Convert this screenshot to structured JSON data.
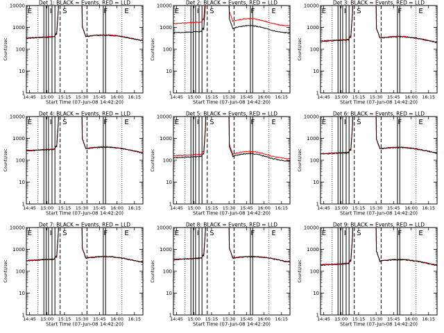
{
  "chart_data": {
    "type": "line",
    "ylabel": "Counts/sec",
    "xlabel": "Start Time (07-Jun-08 14:42:20)",
    "x_range_minutes": [
      0,
      100
    ],
    "yscale": "log",
    "ylim": [
      1,
      10000
    ],
    "y_ticks": [
      {
        "value": 1,
        "label": "1"
      },
      {
        "value": 10,
        "label": "10"
      },
      {
        "value": 100,
        "label": "100"
      },
      {
        "value": 1000,
        "label": "1000"
      },
      {
        "value": 10000,
        "label": "10000"
      }
    ],
    "x_ticks": [
      {
        "t": 2.7,
        "label": "14:45"
      },
      {
        "t": 17.7,
        "label": "15:00"
      },
      {
        "t": 32.7,
        "label": "15:15"
      },
      {
        "t": 47.7,
        "label": "15:30"
      },
      {
        "t": 62.7,
        "label": "15:45"
      },
      {
        "t": 77.7,
        "label": "16:00"
      },
      {
        "t": 92.7,
        "label": "16:15"
      }
    ],
    "series_legend": {
      "black": "Events",
      "red": "LLD"
    },
    "marker_letters": [
      "E",
      "I",
      "S",
      "F",
      "E"
    ],
    "panels": [
      {
        "title": "Det 1: BLACK = Events, RED = LLD",
        "pre_black": 320,
        "pre_red": 330,
        "post_black": 380,
        "post_red": 390,
        "variant": "normal"
      },
      {
        "title": "Det 2: BLACK = Events, RED = LLD",
        "pre_black": 560,
        "pre_red": 1500,
        "post_black": 900,
        "post_red": 1900,
        "variant": "elevated"
      },
      {
        "title": "Det 3: BLACK = Events, RED = LLD",
        "pre_black": 230,
        "pre_red": 240,
        "post_black": 320,
        "post_red": 330,
        "variant": "normal"
      },
      {
        "title": "Det 4: BLACK = Events, RED = LLD",
        "pre_black": 270,
        "pre_red": 280,
        "post_black": 340,
        "post_red": 350,
        "variant": "normal"
      },
      {
        "title": "Det 5: BLACK = Events, RED = LLD",
        "pre_black": 130,
        "pre_red": 160,
        "post_black": 150,
        "post_red": 190,
        "variant": "elevated"
      },
      {
        "title": "Det 6: BLACK = Events, RED = LLD",
        "pre_black": 190,
        "pre_red": 200,
        "post_black": 330,
        "post_red": 340,
        "variant": "normal"
      },
      {
        "title": "Det 7: BLACK = Events, RED = LLD",
        "pre_black": 300,
        "pre_red": 310,
        "post_black": 400,
        "post_red": 410,
        "variant": "normal"
      },
      {
        "title": "Det 8: BLACK = Events, RED = LLD",
        "pre_black": 340,
        "pre_red": 350,
        "post_black": 400,
        "post_red": 410,
        "variant": "normal"
      },
      {
        "title": "Det 9: BLACK = Events, RED = LLD",
        "pre_black": 190,
        "pre_red": 200,
        "post_black": 290,
        "post_red": 300,
        "variant": "normal"
      }
    ]
  },
  "colors": {
    "events": "#000000",
    "lld": "#ff0000",
    "frame": "#000000",
    "background": "#ffffff"
  }
}
